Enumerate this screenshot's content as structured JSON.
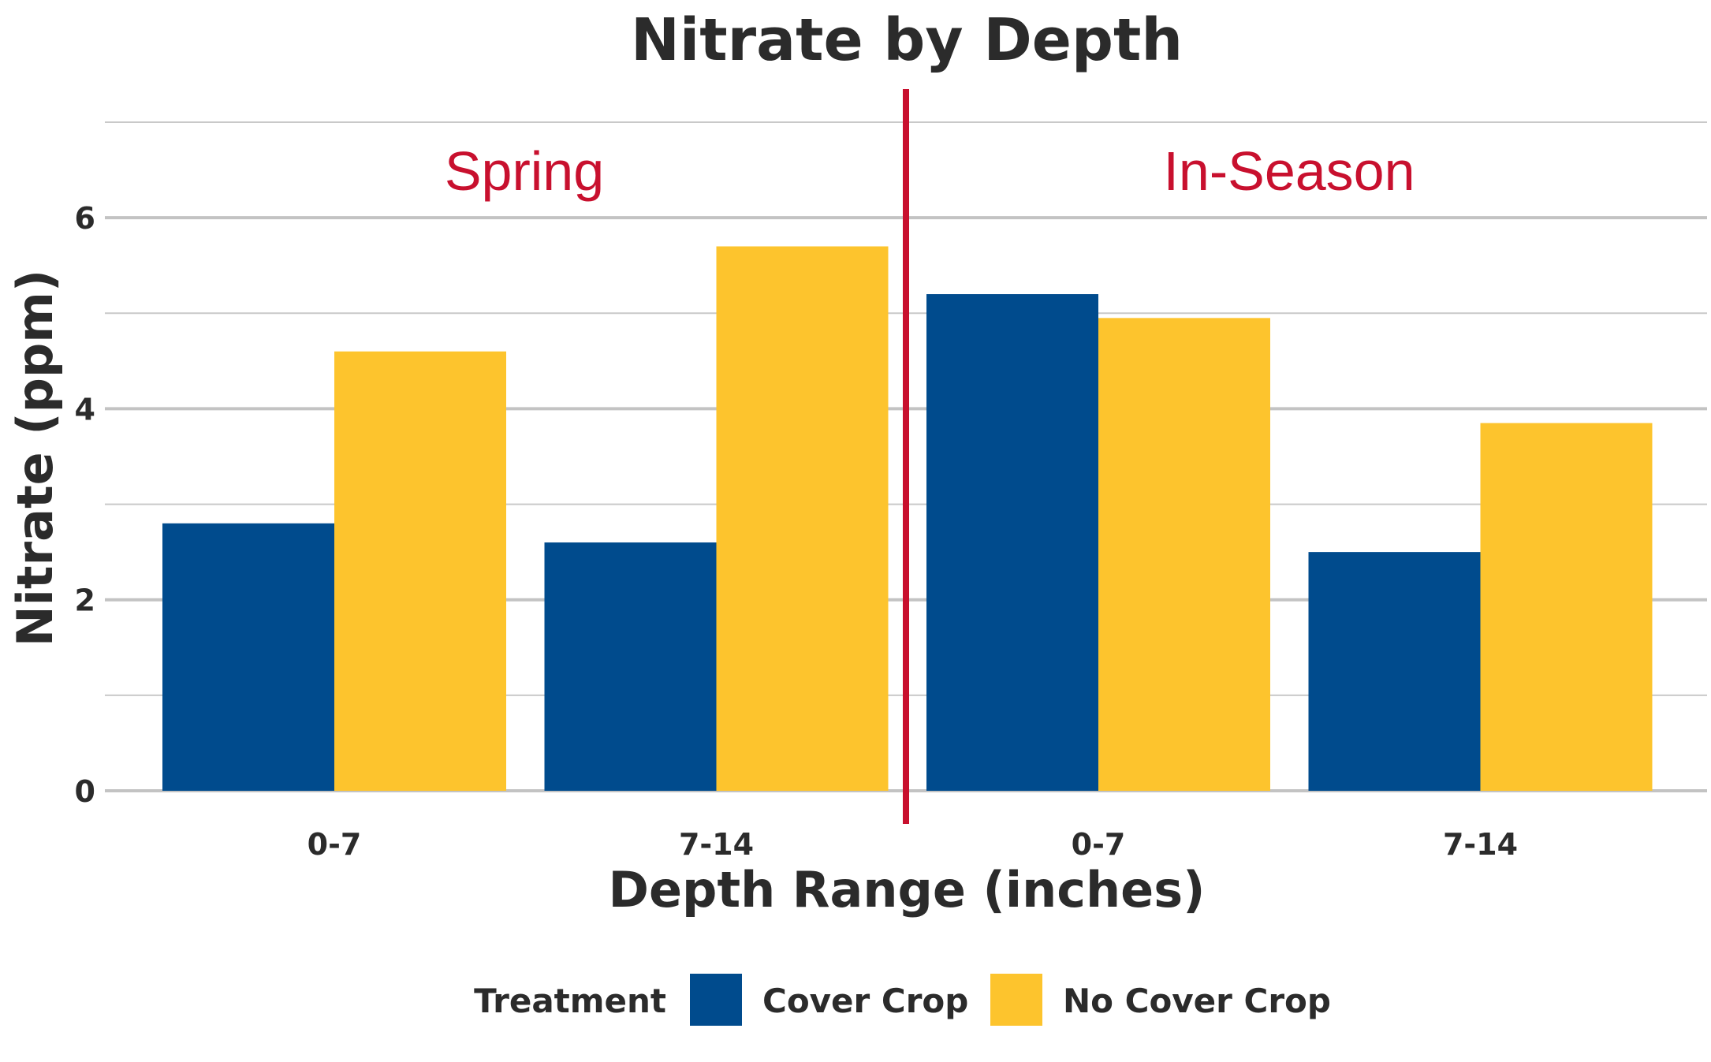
{
  "chart_data": {
    "type": "bar",
    "title": "Nitrate by Depth",
    "xlabel": "Depth Range (inches)",
    "ylabel": "Nitrate (ppm)",
    "ylim": [
      0,
      7
    ],
    "yticks": [
      0,
      2,
      4,
      6
    ],
    "minor_gridlines": [
      1,
      3,
      5,
      7
    ],
    "grid": true,
    "categories": [
      "0-7",
      "7-14",
      "0-7",
      "7-14"
    ],
    "panels": [
      {
        "label": "Spring",
        "categories": [
          0,
          1
        ]
      },
      {
        "label": "In-Season",
        "categories": [
          2,
          3
        ]
      }
    ],
    "series": [
      {
        "name": "Cover Crop",
        "color": "#004b8d",
        "values": [
          2.8,
          2.6,
          5.2,
          2.5
        ]
      },
      {
        "name": "No Cover Crop",
        "color": "#fdc42d",
        "values": [
          4.6,
          5.7,
          4.95,
          3.85
        ]
      }
    ],
    "divider_color": "#c8102e",
    "legend": {
      "title": "Treatment",
      "position": "bottom"
    }
  }
}
